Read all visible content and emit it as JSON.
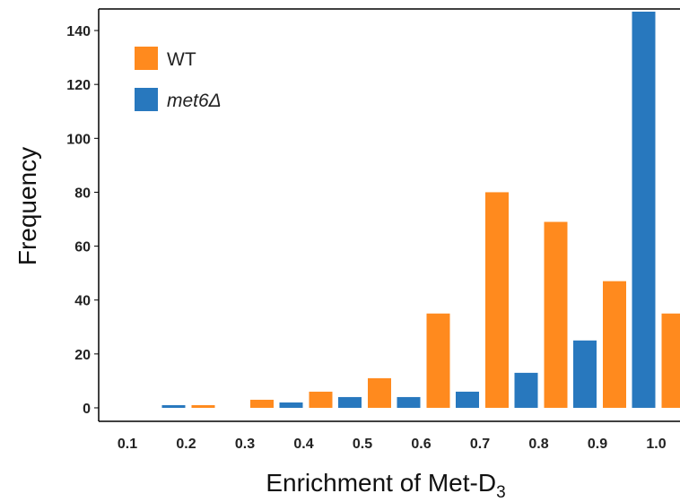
{
  "chart_data": {
    "type": "bar",
    "title": "",
    "xlabel": "Enrichment of Met-D",
    "xlabel_subscript": "3",
    "ylabel": "Frequency",
    "categories": [
      "0.1",
      "0.2",
      "0.3",
      "0.4",
      "0.5",
      "0.6",
      "0.7",
      "0.8",
      "0.9",
      "1.0"
    ],
    "series": [
      {
        "name": "WT",
        "name_style": "normal",
        "color": "#FF8A1E",
        "values": [
          0,
          1,
          3,
          6,
          11,
          35,
          80,
          69,
          47,
          35
        ]
      },
      {
        "name": "met6Δ",
        "name_style": "italic",
        "color": "#2878BE",
        "values": [
          0,
          1,
          0,
          2,
          4,
          4,
          6,
          13,
          25,
          147
        ]
      }
    ],
    "ylim": [
      -5,
      148
    ],
    "yticks": [
      0,
      20,
      40,
      60,
      80,
      100,
      120,
      140
    ],
    "grid": false,
    "legend_position": "top-left"
  }
}
